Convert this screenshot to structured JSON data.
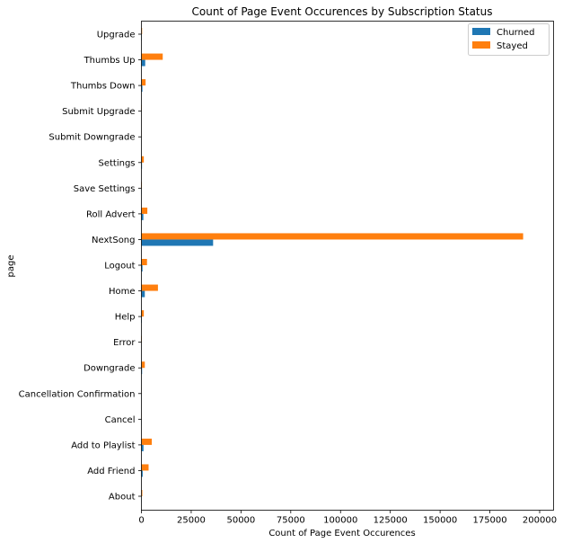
{
  "chart_data": {
    "type": "bar",
    "orientation": "horizontal",
    "title": "Count of Page Event Occurences by Subscription Status",
    "xlabel": "Count of Page Event Occurences",
    "ylabel": "page",
    "xlim": [
      0,
      200000
    ],
    "xticks": [
      "0",
      "25000",
      "50000",
      "75000",
      "100000",
      "125000",
      "150000",
      "175000",
      "200000"
    ],
    "legend_position": "top-right",
    "grid": false,
    "categories": [
      "Upgrade",
      "Thumbs Up",
      "Thumbs Down",
      "Submit Upgrade",
      "Submit Downgrade",
      "Settings",
      "Save Settings",
      "Roll Advert",
      "NextSong",
      "Logout",
      "Home",
      "Help",
      "Error",
      "Downgrade",
      "Cancellation Confirmation",
      "Cancel",
      "Add to Playlist",
      "Add Friend",
      "About"
    ],
    "series": [
      {
        "name": "Churned",
        "color": "#1f77b4",
        "values": [
          150,
          1900,
          500,
          30,
          10,
          300,
          60,
          970,
          36000,
          550,
          1700,
          240,
          30,
          340,
          50,
          50,
          1040,
          640,
          60
        ]
      },
      {
        "name": "Stayed",
        "color": "#ff7f0e",
        "values": [
          350,
          10700,
          2100,
          130,
          50,
          1200,
          250,
          2970,
          191700,
          2800,
          8300,
          1200,
          220,
          1700,
          50,
          50,
          5200,
          3600,
          450
        ]
      }
    ]
  }
}
